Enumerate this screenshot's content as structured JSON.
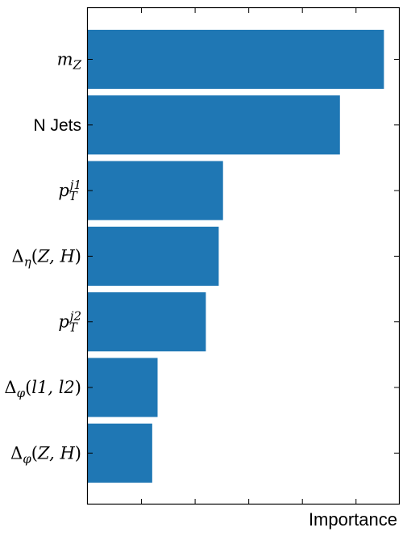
{
  "chart_data": {
    "type": "bar",
    "orientation": "horizontal",
    "xlabel": "Importance",
    "ylabel": "",
    "xlim": [
      0,
      0.29
    ],
    "tick_labels_visible": false,
    "grid": false,
    "bar_color": "#1f77b4",
    "categories": [
      {
        "label": "m_Z",
        "parts": [
          {
            "t": "m"
          },
          {
            "t": "Z",
            "sub": true
          }
        ]
      },
      {
        "label": "N Jets",
        "plain": true
      },
      {
        "label": "p_T^{j1}",
        "parts": [
          {
            "t": "p"
          },
          {
            "t": "T",
            "sub": true
          },
          {
            "t": "j1",
            "sup": true
          }
        ]
      },
      {
        "label": "Δ_η(Z, H)",
        "parts": [
          {
            "t": "Δ",
            "upright": true
          },
          {
            "t": "η",
            "sub": true
          },
          {
            "t": "(",
            "upright": true
          },
          {
            "t": "Z, H"
          },
          {
            "t": ")",
            "upright": true
          }
        ]
      },
      {
        "label": "p_T^{j2}",
        "parts": [
          {
            "t": "p"
          },
          {
            "t": "T",
            "sub": true
          },
          {
            "t": "j2",
            "sup": true
          }
        ]
      },
      {
        "label": "Δ_φ(l1, l2)",
        "parts": [
          {
            "t": "Δ",
            "upright": true
          },
          {
            "t": "φ",
            "sub": true
          },
          {
            "t": "(",
            "upright": true
          },
          {
            "t": "l1, l2"
          },
          {
            "t": ")",
            "upright": true
          }
        ]
      },
      {
        "label": "Δ_φ(Z, H)",
        "parts": [
          {
            "t": "Δ",
            "upright": true
          },
          {
            "t": "φ",
            "sub": true
          },
          {
            "t": "(",
            "upright": true
          },
          {
            "t": "Z, H"
          },
          {
            "t": ")",
            "upright": true
          }
        ]
      }
    ],
    "values": [
      0.276,
      0.235,
      0.126,
      0.122,
      0.11,
      0.065,
      0.06
    ]
  }
}
